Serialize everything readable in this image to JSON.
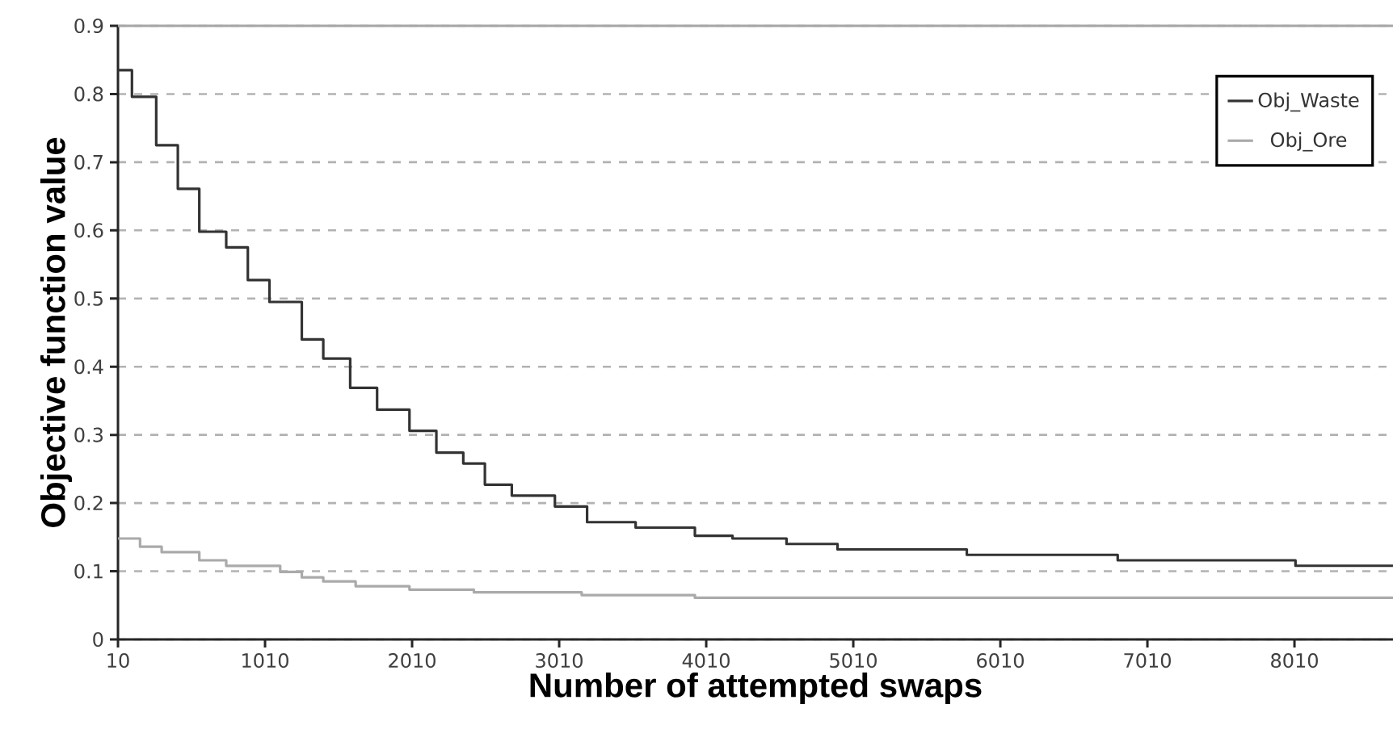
{
  "chart_data": {
    "type": "step",
    "xlabel": "Number of attempted swaps",
    "ylabel": "Objective function value",
    "xlim": [
      10,
      8680
    ],
    "ylim": [
      0,
      0.9
    ],
    "xticks": [
      10,
      1010,
      2010,
      3010,
      4010,
      5010,
      6010,
      7010,
      8010
    ],
    "yticks": [
      0,
      0.1,
      0.2,
      0.3,
      0.4,
      0.5,
      0.6,
      0.7,
      0.8,
      0.9
    ],
    "grid": "y",
    "legend": "top right",
    "series": [
      {
        "name": "Obj_Waste",
        "color": "#333333",
        "x": [
          10,
          105,
          270,
          417,
          563,
          746,
          893,
          1040,
          1260,
          1406,
          1589,
          1772,
          1992,
          2175,
          2358,
          2505,
          2688,
          2981,
          3200,
          3530,
          3933,
          4189,
          4556,
          4903,
          5782,
          6808,
          8017,
          8680
        ],
        "values": [
          0.835,
          0.796,
          0.725,
          0.661,
          0.598,
          0.575,
          0.527,
          0.495,
          0.44,
          0.412,
          0.369,
          0.337,
          0.306,
          0.274,
          0.258,
          0.227,
          0.211,
          0.195,
          0.172,
          0.164,
          0.152,
          0.148,
          0.14,
          0.132,
          0.124,
          0.116,
          0.108,
          0.108
        ]
      },
      {
        "name": "Obj_Ore",
        "color": "#aaaaaa",
        "x": [
          10,
          160,
          307,
          563,
          746,
          1113,
          1260,
          1406,
          1626,
          1992,
          2430,
          3163,
          3933,
          8680
        ],
        "values": [
          0.148,
          0.136,
          0.128,
          0.116,
          0.108,
          0.099,
          0.091,
          0.085,
          0.078,
          0.073,
          0.069,
          0.065,
          0.061,
          0.061
        ]
      }
    ]
  }
}
